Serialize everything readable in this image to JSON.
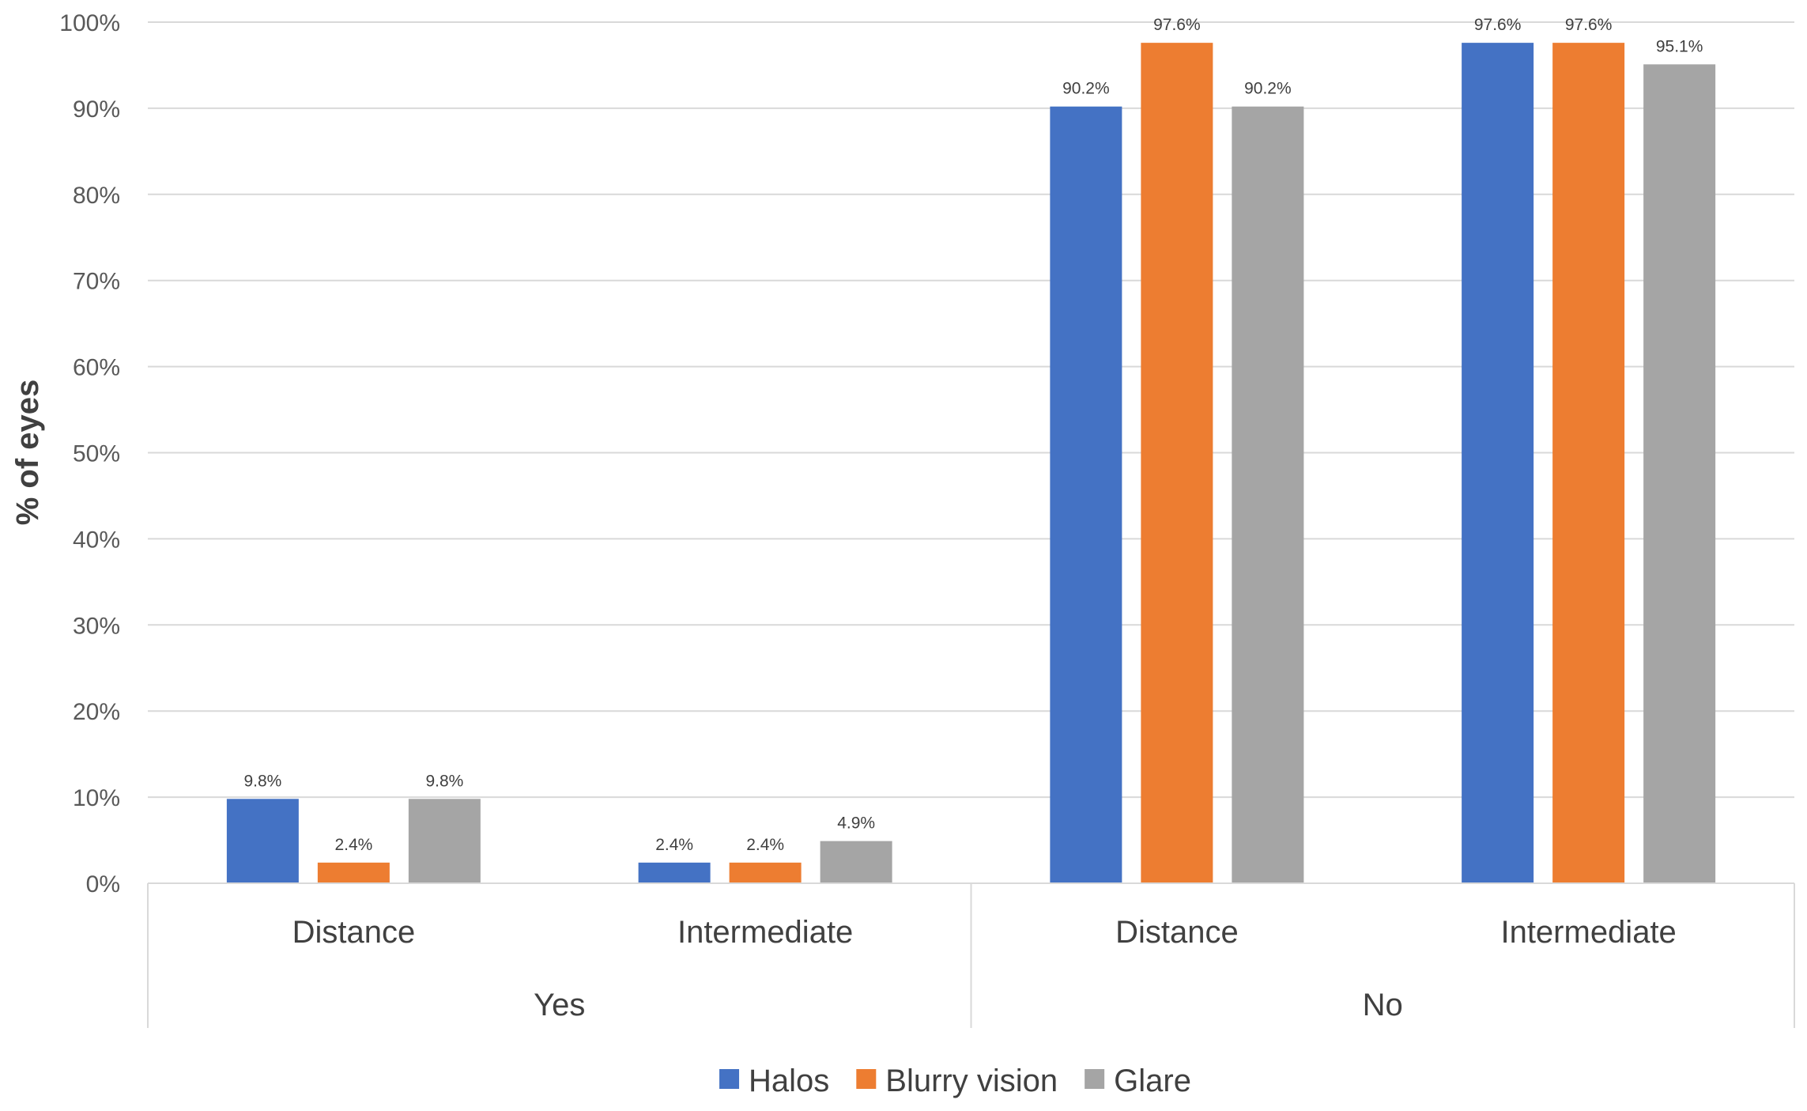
{
  "chart_data": {
    "type": "bar",
    "title": "",
    "ylabel": "% of eyes",
    "xlabel": "",
    "ylim": [
      0,
      100
    ],
    "yticks": [
      "0%",
      "10%",
      "20%",
      "30%",
      "40%",
      "50%",
      "60%",
      "70%",
      "80%",
      "90%",
      "100%"
    ],
    "categories": [
      "Distance",
      "Intermediate",
      "Distance",
      "Intermediate"
    ],
    "groups": [
      {
        "label": "Yes",
        "categories": [
          "Distance",
          "Intermediate"
        ]
      },
      {
        "label": "No",
        "categories": [
          "Distance",
          "Intermediate"
        ]
      }
    ],
    "series": [
      {
        "name": "Halos",
        "color": "#4472C4",
        "values": [
          9.8,
          2.4,
          90.2,
          97.6
        ],
        "labels": [
          "9.8%",
          "2.4%",
          "90.2%",
          "97.6%"
        ]
      },
      {
        "name": "Blurry vision",
        "color": "#ED7D31",
        "values": [
          2.4,
          2.4,
          97.6,
          97.6
        ],
        "labels": [
          "2.4%",
          "2.4%",
          "97.6%",
          "97.6%"
        ]
      },
      {
        "name": "Glare",
        "color": "#A5A5A5",
        "values": [
          9.8,
          4.9,
          90.2,
          95.1
        ],
        "labels": [
          "9.8%",
          "4.9%",
          "90.2%",
          "95.1%"
        ]
      }
    ],
    "grid": true,
    "legend_position": "bottom"
  }
}
